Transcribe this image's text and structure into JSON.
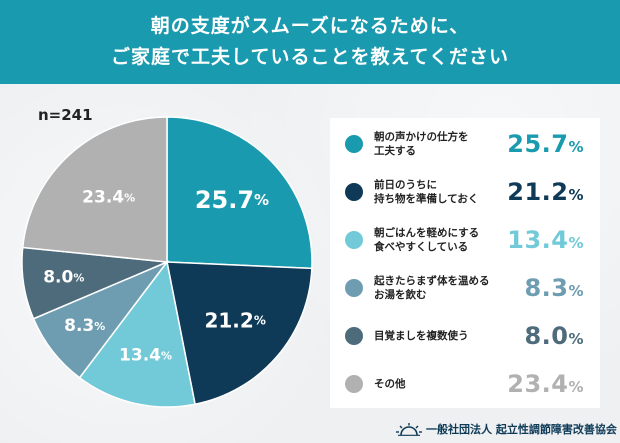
{
  "header": {
    "line1": "朝の支度がスムーズになるために、",
    "line2": "ご家庭で工夫していることを教えてください"
  },
  "sample": "n=241",
  "chart_data": {
    "type": "pie",
    "title": "朝の支度がスムーズになるために、ご家庭で工夫していることを教えてください",
    "n": 241,
    "unit": "%",
    "slices": [
      {
        "label": "朝の声かけの仕方を工夫する",
        "label_lines": [
          "朝の声かけの仕方を",
          "工夫する"
        ],
        "value": 25.7,
        "display": "25.7",
        "color": "#1a9aae",
        "text_color": "#1a9aae"
      },
      {
        "label": "前日のうちに持ち物を準備しておく",
        "label_lines": [
          "前日のうちに",
          "持ち物を準備しておく"
        ],
        "value": 21.2,
        "display": "21.2",
        "color": "#0e3a57",
        "text_color": "#0e3a57"
      },
      {
        "label": "朝ごはんを軽めにする食べやすくしている",
        "label_lines": [
          "朝ごはんを軽めにする",
          "食べやすくしている"
        ],
        "value": 13.4,
        "display": "13.4",
        "color": "#72cad9",
        "text_color": "#72cad9"
      },
      {
        "label": "起きたらまず体を温めるお湯を飲む",
        "label_lines": [
          "起きたらまず体を温める",
          "お湯を飲む"
        ],
        "value": 8.3,
        "display": "8.3",
        "color": "#6e9db2",
        "text_color": "#6e9db2"
      },
      {
        "label": "目覚ましを複数使う",
        "label_lines": [
          "目覚ましを複数使う"
        ],
        "value": 8.0,
        "display": "8.0",
        "color": "#4e6b7c",
        "text_color": "#4e6b7c"
      },
      {
        "label": "その他",
        "label_lines": [
          "その他"
        ],
        "value": 23.4,
        "display": "23.4",
        "color": "#b1b1b1",
        "text_color": "#b1b1b1"
      }
    ]
  },
  "footer": {
    "org": "一般社団法人 起立性調節障害改善協会"
  }
}
